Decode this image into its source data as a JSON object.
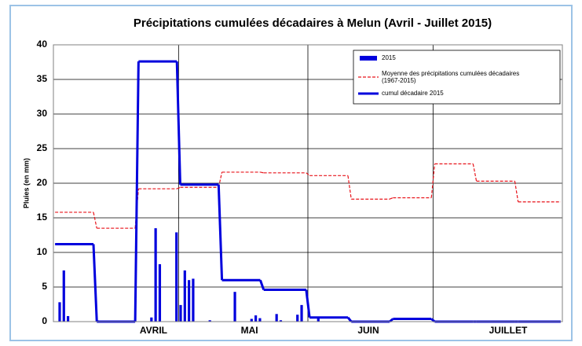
{
  "chart_data": {
    "type": "combo",
    "title": "Précipitations cumulées décadaires à Melun (Avril - Juillet 2015)",
    "y_label": "Pluies (en mm)",
    "xlim": [
      0,
      122
    ],
    "ylim": [
      0,
      40
    ],
    "yticks": [
      0,
      5,
      10,
      15,
      20,
      25,
      30,
      35,
      40
    ],
    "grid": true,
    "xticks": [
      {
        "value": 24,
        "label": "AVRIL"
      },
      {
        "value": 47,
        "label": "MAI"
      },
      {
        "value": 75.5,
        "label": "JUIN"
      },
      {
        "value": 109,
        "label": "JUILLET"
      }
    ],
    "month_boundaries": [
      30,
      61,
      91
    ],
    "legend": "top-right",
    "series": [
      {
        "name": "2015",
        "kind": "bar",
        "color": "#0000dd",
        "x": [
          2,
          3,
          4,
          11,
          24,
          25,
          26,
          30,
          31,
          32,
          33,
          34,
          38,
          44,
          48,
          49,
          50,
          54,
          55,
          59,
          60,
          64
        ],
        "values": [
          2.8,
          7.4,
          0.8,
          0.2,
          0.6,
          13.5,
          8.3,
          12.9,
          2.4,
          7.4,
          6.0,
          6.2,
          0.2,
          4.3,
          0.4,
          0.9,
          0.5,
          1.1,
          0.2,
          1.0,
          2.4,
          0.5
        ]
      },
      {
        "name": "Moyenne des précipitations cumulées décadaires (1967-2015)",
        "kind": "step",
        "dash": true,
        "color": "#e8141b",
        "x": [
          0,
          10,
          20,
          30,
          40,
          50,
          61,
          71,
          81,
          91,
          101,
          111
        ],
        "values": [
          15.8,
          13.5,
          19.2,
          19.4,
          21.6,
          21.5,
          21.1,
          17.7,
          17.9,
          22.8,
          20.3,
          17.3
        ]
      },
      {
        "name": "cumul décadaire 2015",
        "kind": "step",
        "dash": false,
        "color": "#0000dd",
        "x": [
          0,
          10,
          20,
          30,
          40,
          50,
          61,
          71,
          81,
          91,
          101,
          111
        ],
        "values": [
          11.2,
          0,
          37.6,
          19.8,
          6.0,
          4.6,
          0.6,
          0,
          0.4,
          0,
          0,
          0
        ]
      }
    ]
  }
}
